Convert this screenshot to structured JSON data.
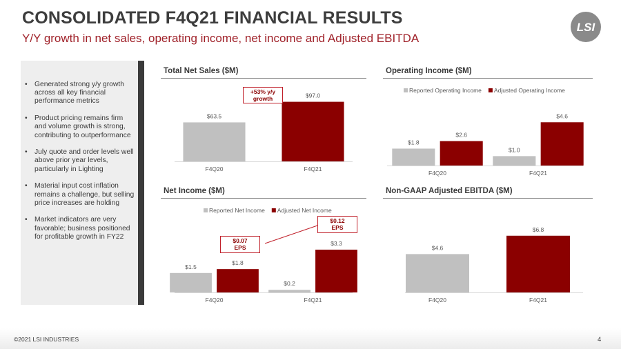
{
  "header": {
    "title": "CONSOLIDATED F4Q21 FINANCIAL RESULTS",
    "subtitle": "Y/Y growth in net sales, operating income, net income and Adjusted EBITDA",
    "logo_text": "LSI"
  },
  "bullets": [
    "Generated strong y/y growth across all key financial performance metrics",
    "Product pricing remains firm and volume growth is strong, contributing to outperformance",
    "July quote and order levels well above prior year levels, particularly in Lighting",
    "Material input cost inflation remains a challenge, but selling price increases are holding",
    "Market indicators are very favorable; business positioned for profitable growth in FY22"
  ],
  "colors": {
    "grey": "#c0c0c0",
    "red": "#8b0000",
    "accent": "#a0222a"
  },
  "callouts": {
    "growth": "+53% y/y\ngrowth",
    "eps_q20": "$0.07\nEPS",
    "eps_q21": "$0.12\nEPS"
  },
  "chart_data": [
    {
      "id": "net_sales",
      "type": "bar",
      "title": "Total Net Sales ($M)",
      "categories": [
        "F4Q20",
        "F4Q21"
      ],
      "series": [
        {
          "values": [
            63.5,
            97.0
          ],
          "labels": [
            "$63.5",
            "$97.0"
          ],
          "colors": [
            "#c0c0c0",
            "#8b0000"
          ]
        }
      ],
      "ylim": [
        0,
        110
      ],
      "legend": null
    },
    {
      "id": "operating_income",
      "type": "bar",
      "title": "Operating Income ($M)",
      "categories": [
        "F4Q20",
        "F4Q21"
      ],
      "series": [
        {
          "name": "Reported Operating Income",
          "values": [
            1.8,
            1.0
          ],
          "labels": [
            "$1.8",
            "$1.0"
          ],
          "color": "#c0c0c0"
        },
        {
          "name": "Adjusted Operating Income",
          "values": [
            2.6,
            4.6
          ],
          "labels": [
            "$2.6",
            "$4.6"
          ],
          "color": "#8b0000"
        }
      ],
      "ylim": [
        0,
        6.6
      ],
      "legend": "top"
    },
    {
      "id": "net_income",
      "type": "bar",
      "title": "Net Income ($M)",
      "categories": [
        "F4Q20",
        "F4Q21"
      ],
      "series": [
        {
          "name": "Reported Net Income",
          "values": [
            1.5,
            0.2
          ],
          "labels": [
            "$1.5",
            "$0.2"
          ],
          "color": "#c0c0c0"
        },
        {
          "name": "Adjusted Net Income",
          "values": [
            1.8,
            3.3
          ],
          "labels": [
            "$1.8",
            "$3.3"
          ],
          "color": "#8b0000"
        }
      ],
      "ylim": [
        0,
        5.0
      ],
      "legend": "top"
    },
    {
      "id": "adj_ebitda",
      "type": "bar",
      "title": "Non-GAAP Adjusted EBITDA ($M)",
      "categories": [
        "F4Q20",
        "F4Q21"
      ],
      "series": [
        {
          "values": [
            4.6,
            6.8
          ],
          "labels": [
            "$4.6",
            "$6.8"
          ],
          "colors": [
            "#c0c0c0",
            "#8b0000"
          ]
        }
      ],
      "ylim": [
        0,
        8.6
      ],
      "legend": null
    }
  ],
  "footer": {
    "copyright": "©2021 LSI INDUSTRIES",
    "page": "4"
  }
}
